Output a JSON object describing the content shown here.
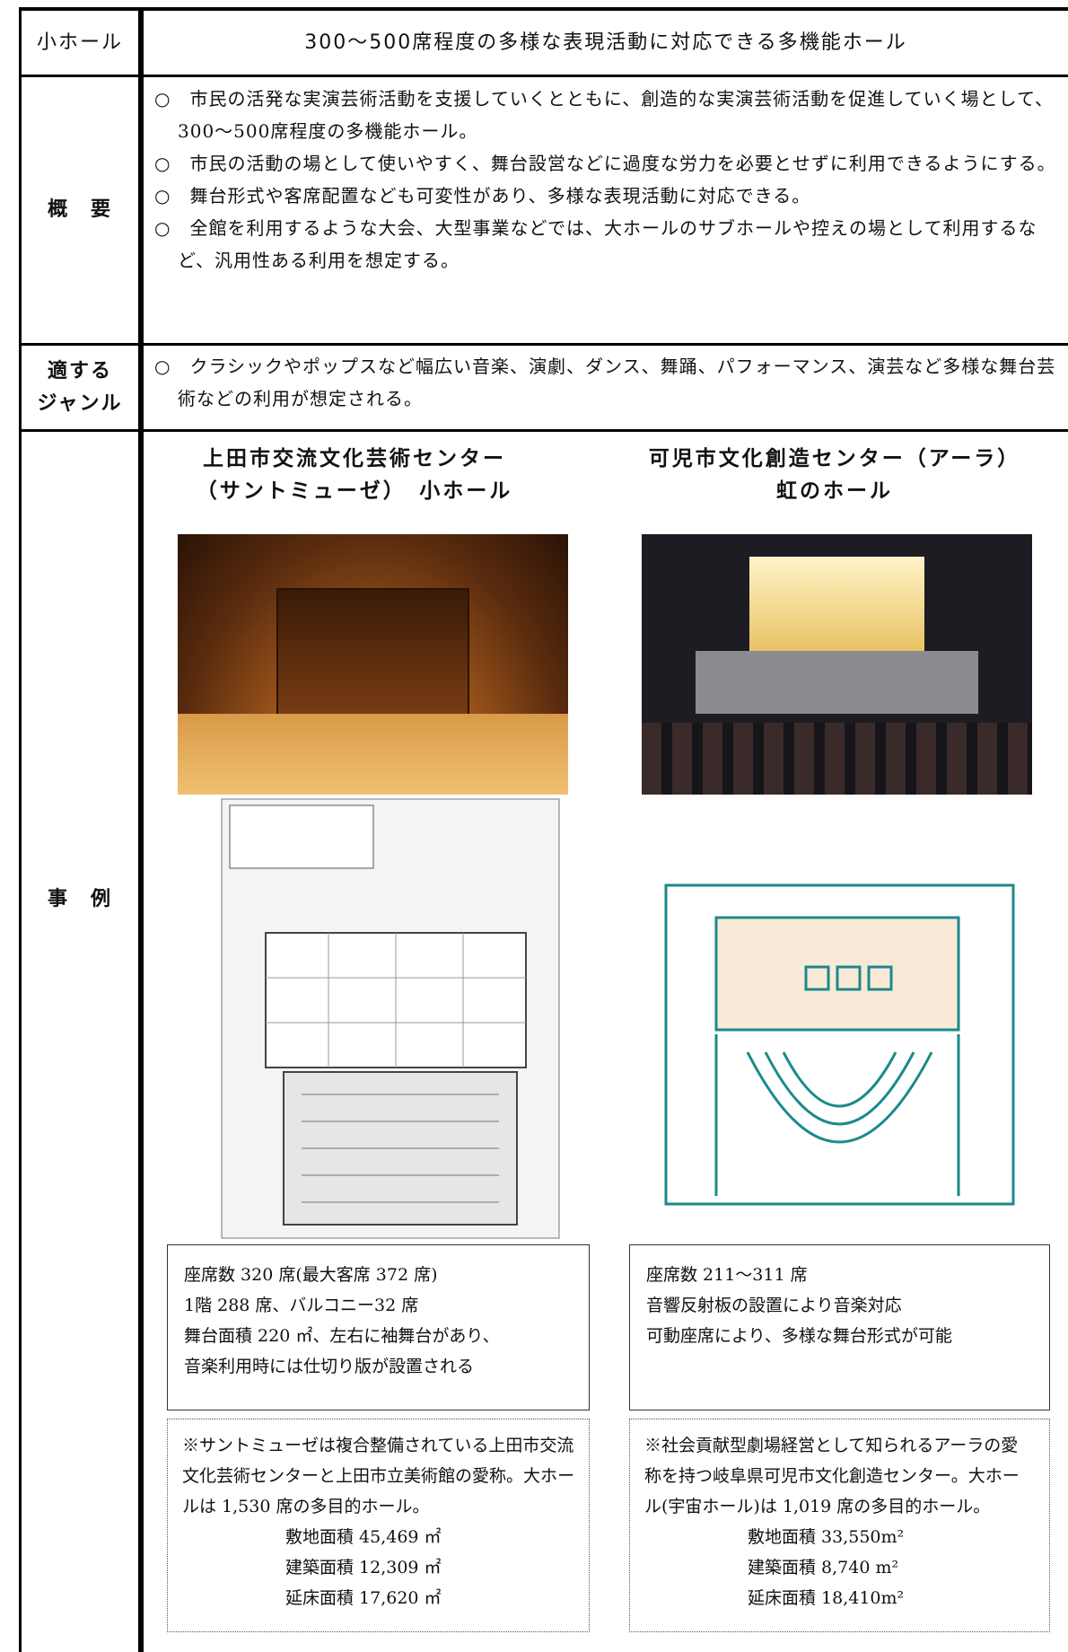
{
  "header": {
    "label": "小ホール",
    "title": "300～500席程度の多様な表現活動に対応できる多機能ホール"
  },
  "overview": {
    "label": "概　要",
    "items": [
      "○　市民の活発な実演芸術活動を支援していくとともに、創造的な実演芸術活動を促進していく場として、300～500席程度の多機能ホール。",
      "○　市民の活動の場として使いやすく、舞台設営などに過度な労力を必要とせずに利用できるようにする。",
      "○　舞台形式や客席配置なども可変性があり、多様な表現活動に対応できる。",
      "○　全館を利用するような大会、大型事業などでは、大ホールのサブホールや控えの場として利用するなど、汎用性ある利用を想定する。"
    ]
  },
  "genre": {
    "label": [
      "適する",
      "ジャンル"
    ],
    "items": [
      "○　クラシックやポップスなど幅広い音楽、演劇、ダンス、舞踊、パフォーマンス、演芸など多様な舞台芸術などの利用が想定される。"
    ]
  },
  "examples": {
    "label": "事　例",
    "cases": [
      {
        "name": [
          "上田市交流文化芸術センター",
          "（サントミューゼ）　小ホール"
        ],
        "details": [
          "座席数 320 席(最大客席 372 席)",
          "1階 288 席、バルコニー32 席",
          "舞台面積 220 ㎡、左右に袖舞台があり、",
          "音楽利用時には仕切り版が設置される"
        ],
        "note": "※サントミューゼは複合整備されている上田市交流文化芸術センターと上田市立美術館の愛称。大ホールは 1,530 席の多目的ホール。",
        "areas": [
          "敷地面積 45,469 ㎡",
          "建築面積 12,309 ㎡",
          "延床面積 17,620 ㎡"
        ]
      },
      {
        "name": [
          "可児市文化創造センター（アーラ）",
          "虹のホール"
        ],
        "details": [
          "座席数 211～311 席",
          "音響反射板の設置により音楽対応",
          "可動座席により、多様な舞台形式が可能"
        ],
        "note": "※社会貢献型劇場経営として知られるアーラの愛称を持つ岐阜県可児市文化創造センター。大ホール(宇宙ホール)は 1,019 席の多目的ホール。",
        "areas": [
          "敷地面積 33,550m²",
          "建築面積 8,740 m²",
          "延床面積 18,410m²"
        ]
      }
    ]
  }
}
